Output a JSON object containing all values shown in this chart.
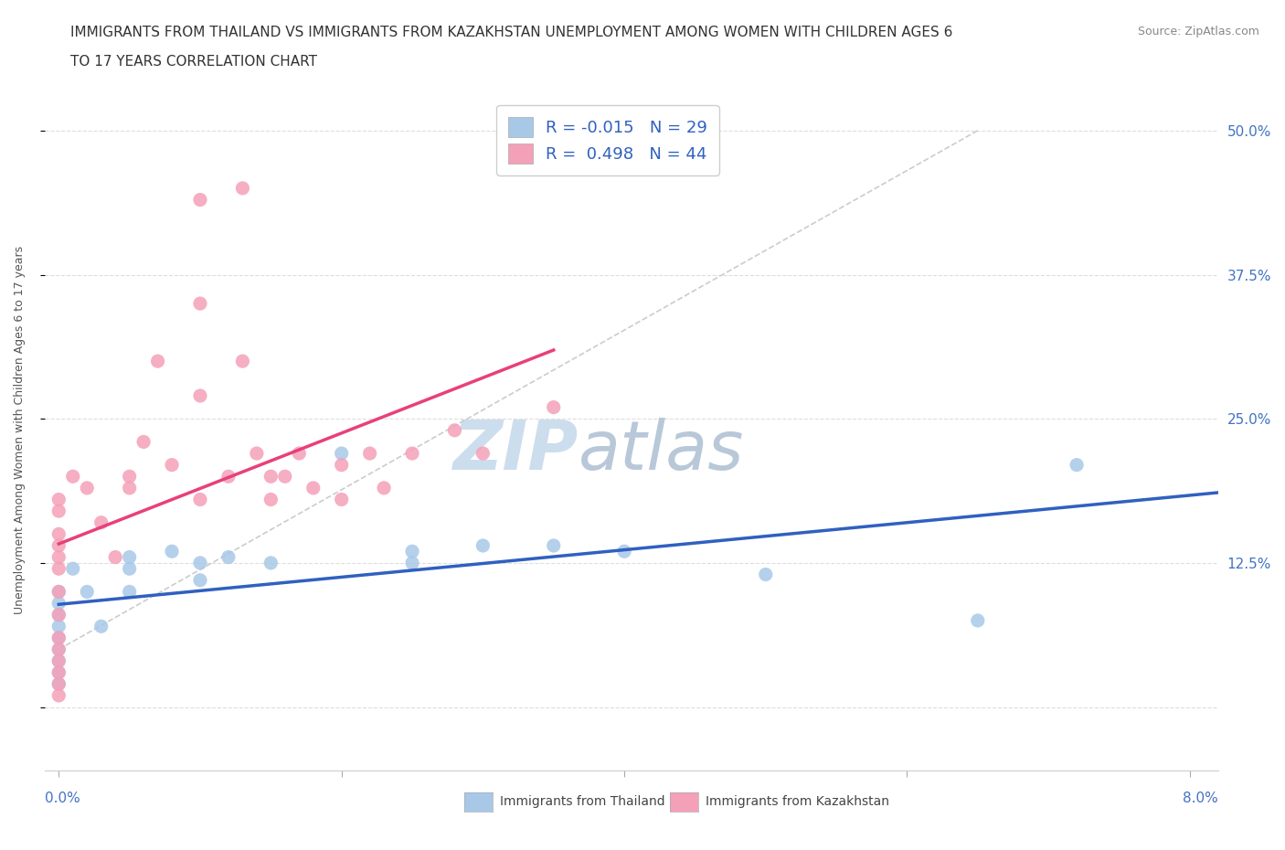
{
  "title_line1": "IMMIGRANTS FROM THAILAND VS IMMIGRANTS FROM KAZAKHSTAN UNEMPLOYMENT AMONG WOMEN WITH CHILDREN AGES 6",
  "title_line2": "TO 17 YEARS CORRELATION CHART",
  "source": "Source: ZipAtlas.com",
  "ylabel": "Unemployment Among Women with Children Ages 6 to 17 years",
  "xlim": [
    -0.001,
    0.082
  ],
  "ylim": [
    -0.055,
    0.535
  ],
  "xticks": [
    0.0,
    0.02,
    0.04,
    0.06,
    0.08
  ],
  "xtick_labels_left": "0.0%",
  "xtick_labels_right": "8.0%",
  "yticks": [
    0.0,
    0.125,
    0.25,
    0.375,
    0.5
  ],
  "ytick_labels": [
    "",
    "12.5%",
    "25.0%",
    "37.5%",
    "50.0%"
  ],
  "R_thailand": -0.015,
  "N_thailand": 29,
  "R_kazakhstan": 0.498,
  "N_kazakhstan": 44,
  "color_thailand": "#a8c8e8",
  "color_kazakhstan": "#f4a0b8",
  "line_color_thailand": "#3060c0",
  "line_color_kazakhstan": "#e8407a",
  "legend_text_color": "#3060c0",
  "watermark_zip": "ZIP",
  "watermark_atlas": "atlas",
  "thailand_x": [
    0.0,
    0.0,
    0.0,
    0.0,
    0.0,
    0.0,
    0.0,
    0.0,
    0.0,
    0.001,
    0.002,
    0.003,
    0.005,
    0.005,
    0.005,
    0.008,
    0.01,
    0.01,
    0.012,
    0.015,
    0.02,
    0.025,
    0.025,
    0.03,
    0.035,
    0.04,
    0.05,
    0.065,
    0.072
  ],
  "thailand_y": [
    0.1,
    0.09,
    0.08,
    0.07,
    0.06,
    0.05,
    0.04,
    0.03,
    0.02,
    0.12,
    0.1,
    0.07,
    0.13,
    0.12,
    0.1,
    0.135,
    0.125,
    0.11,
    0.13,
    0.125,
    0.22,
    0.135,
    0.125,
    0.14,
    0.14,
    0.135,
    0.115,
    0.075,
    0.21
  ],
  "kazakhstan_x": [
    0.0,
    0.0,
    0.0,
    0.0,
    0.0,
    0.0,
    0.0,
    0.0,
    0.0,
    0.0,
    0.0,
    0.0,
    0.0,
    0.0,
    0.001,
    0.002,
    0.003,
    0.004,
    0.005,
    0.005,
    0.006,
    0.007,
    0.008,
    0.01,
    0.01,
    0.01,
    0.01,
    0.012,
    0.013,
    0.013,
    0.014,
    0.015,
    0.015,
    0.016,
    0.017,
    0.018,
    0.02,
    0.02,
    0.022,
    0.023,
    0.025,
    0.028,
    0.03,
    0.035
  ],
  "kazakhstan_y": [
    0.18,
    0.17,
    0.15,
    0.14,
    0.13,
    0.12,
    0.1,
    0.08,
    0.06,
    0.05,
    0.04,
    0.03,
    0.02,
    0.01,
    0.2,
    0.19,
    0.16,
    0.13,
    0.2,
    0.19,
    0.23,
    0.3,
    0.21,
    0.44,
    0.35,
    0.27,
    0.18,
    0.2,
    0.45,
    0.3,
    0.22,
    0.2,
    0.18,
    0.2,
    0.22,
    0.19,
    0.21,
    0.18,
    0.22,
    0.19,
    0.22,
    0.24,
    0.22,
    0.26
  ],
  "title_fontsize": 11,
  "label_fontsize": 9,
  "tick_fontsize": 11,
  "watermark_fontsize_zip": 54,
  "watermark_fontsize_atlas": 54,
  "watermark_color": "#ccdded",
  "background_color": "#ffffff",
  "grid_color": "#dddddd",
  "axis_label_color": "#4472c4",
  "legend_fontsize": 13
}
